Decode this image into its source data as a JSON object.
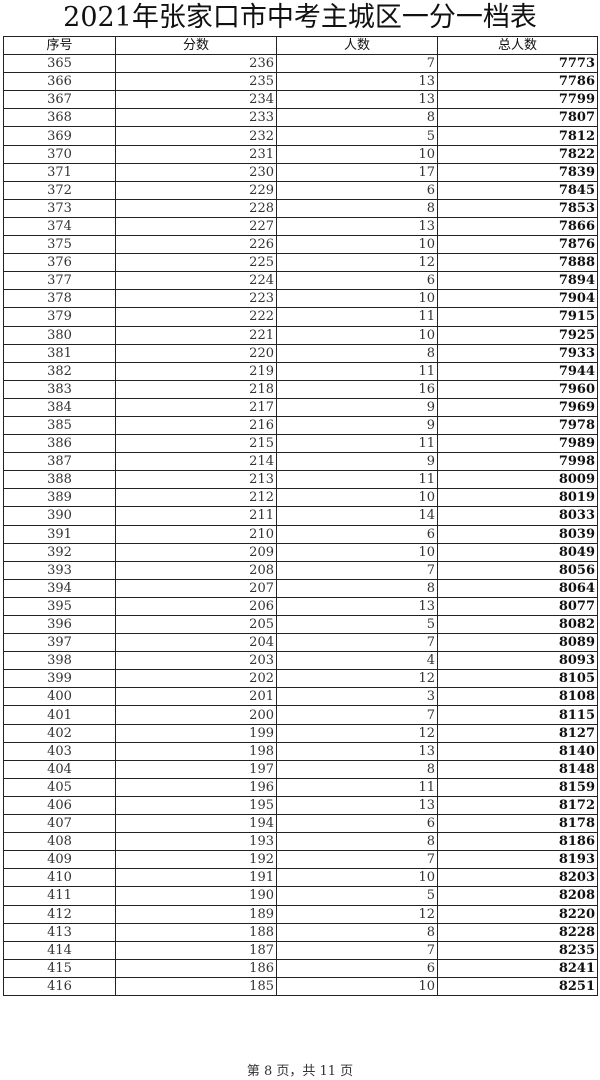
{
  "title": "2021年张家口市中考主城区一分一档表",
  "columns": [
    "序号",
    "分数",
    "人数",
    "总人数"
  ],
  "rows": [
    [
      "365",
      "236",
      "7",
      "7773"
    ],
    [
      "366",
      "235",
      "13",
      "7786"
    ],
    [
      "367",
      "234",
      "13",
      "7799"
    ],
    [
      "368",
      "233",
      "8",
      "7807"
    ],
    [
      "369",
      "232",
      "5",
      "7812"
    ],
    [
      "370",
      "231",
      "10",
      "7822"
    ],
    [
      "371",
      "230",
      "17",
      "7839"
    ],
    [
      "372",
      "229",
      "6",
      "7845"
    ],
    [
      "373",
      "228",
      "8",
      "7853"
    ],
    [
      "374",
      "227",
      "13",
      "7866"
    ],
    [
      "375",
      "226",
      "10",
      "7876"
    ],
    [
      "376",
      "225",
      "12",
      "7888"
    ],
    [
      "377",
      "224",
      "6",
      "7894"
    ],
    [
      "378",
      "223",
      "10",
      "7904"
    ],
    [
      "379",
      "222",
      "11",
      "7915"
    ],
    [
      "380",
      "221",
      "10",
      "7925"
    ],
    [
      "381",
      "220",
      "8",
      "7933"
    ],
    [
      "382",
      "219",
      "11",
      "7944"
    ],
    [
      "383",
      "218",
      "16",
      "7960"
    ],
    [
      "384",
      "217",
      "9",
      "7969"
    ],
    [
      "385",
      "216",
      "9",
      "7978"
    ],
    [
      "386",
      "215",
      "11",
      "7989"
    ],
    [
      "387",
      "214",
      "9",
      "7998"
    ],
    [
      "388",
      "213",
      "11",
      "8009"
    ],
    [
      "389",
      "212",
      "10",
      "8019"
    ],
    [
      "390",
      "211",
      "14",
      "8033"
    ],
    [
      "391",
      "210",
      "6",
      "8039"
    ],
    [
      "392",
      "209",
      "10",
      "8049"
    ],
    [
      "393",
      "208",
      "7",
      "8056"
    ],
    [
      "394",
      "207",
      "8",
      "8064"
    ],
    [
      "395",
      "206",
      "13",
      "8077"
    ],
    [
      "396",
      "205",
      "5",
      "8082"
    ],
    [
      "397",
      "204",
      "7",
      "8089"
    ],
    [
      "398",
      "203",
      "4",
      "8093"
    ],
    [
      "399",
      "202",
      "12",
      "8105"
    ],
    [
      "400",
      "201",
      "3",
      "8108"
    ],
    [
      "401",
      "200",
      "7",
      "8115"
    ],
    [
      "402",
      "199",
      "12",
      "8127"
    ],
    [
      "403",
      "198",
      "13",
      "8140"
    ],
    [
      "404",
      "197",
      "8",
      "8148"
    ],
    [
      "405",
      "196",
      "11",
      "8159"
    ],
    [
      "406",
      "195",
      "13",
      "8172"
    ],
    [
      "407",
      "194",
      "6",
      "8178"
    ],
    [
      "408",
      "193",
      "8",
      "8186"
    ],
    [
      "409",
      "192",
      "7",
      "8193"
    ],
    [
      "410",
      "191",
      "10",
      "8203"
    ],
    [
      "411",
      "190",
      "5",
      "8208"
    ],
    [
      "412",
      "189",
      "12",
      "8220"
    ],
    [
      "413",
      "188",
      "8",
      "8228"
    ],
    [
      "414",
      "187",
      "7",
      "8235"
    ],
    [
      "415",
      "186",
      "6",
      "8241"
    ],
    [
      "416",
      "185",
      "10",
      "8251"
    ]
  ],
  "footer": "第 8 页，共 11 页"
}
